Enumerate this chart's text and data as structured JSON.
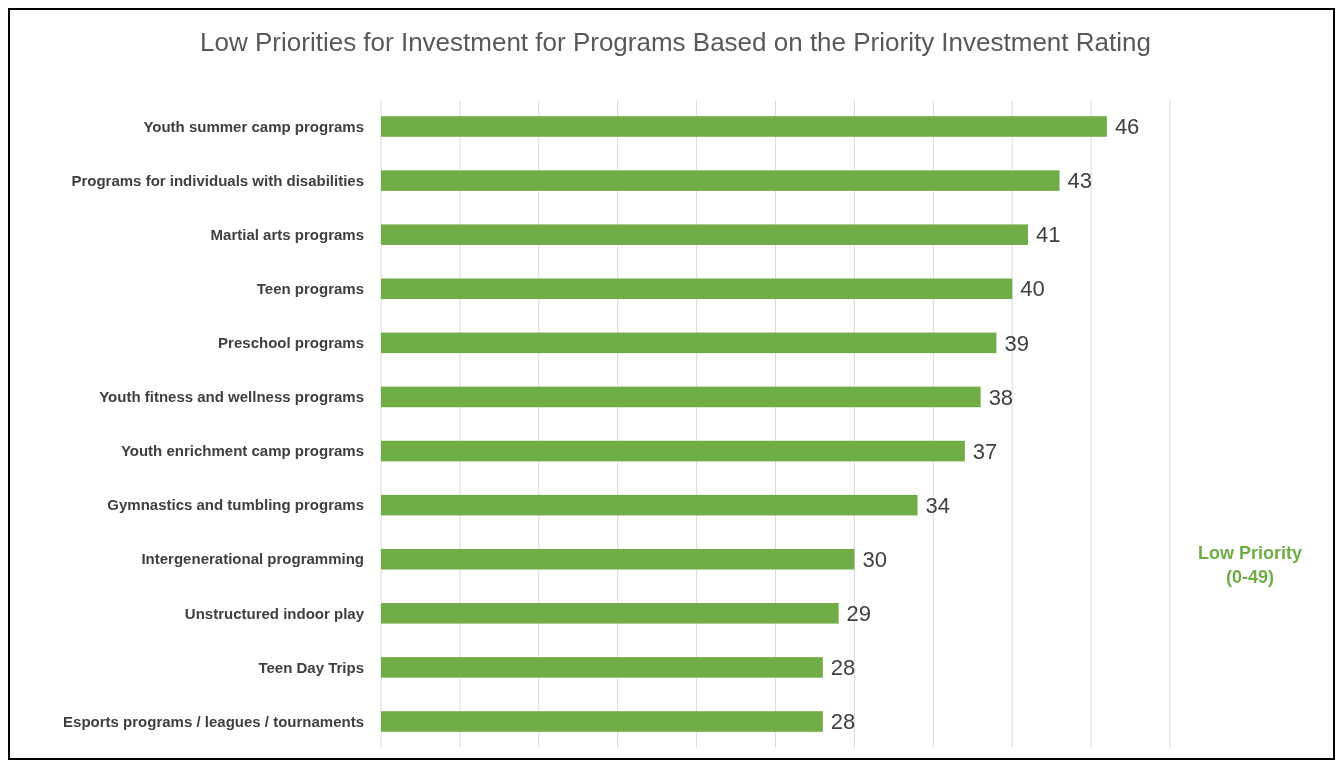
{
  "chart_data": {
    "type": "bar",
    "orientation": "horizontal",
    "title": "Low Priorities for Investment for Programs Based on the Priority Investment Rating",
    "categories": [
      "Youth summer camp programs",
      "Programs for individuals with disabilities",
      "Martial arts programs",
      "Teen programs",
      "Preschool programs",
      "Youth fitness and wellness programs",
      "Youth enrichment camp programs",
      "Gymnastics and tumbling programs",
      "Intergenerational programming",
      "Unstructured indoor play",
      "Teen Day Trips",
      "Esports programs / leagues / tournaments"
    ],
    "values": [
      46,
      43,
      41,
      40,
      39,
      38,
      37,
      34,
      30,
      29,
      28,
      28
    ],
    "color": "#70ad47",
    "data_labels": true,
    "grid": "x",
    "tick_labels": "y",
    "xlim": [
      0,
      50
    ],
    "xticks": [
      {
        "value": 0,
        "label": null
      },
      {
        "value": 5,
        "label": null
      },
      {
        "value": 10,
        "label": null
      },
      {
        "value": 15,
        "label": null
      },
      {
        "value": 20,
        "label": null
      },
      {
        "value": 25,
        "label": null
      },
      {
        "value": 30,
        "label": null
      },
      {
        "value": 35,
        "label": null
      },
      {
        "value": 40,
        "label": null
      },
      {
        "value": 45,
        "label": null
      },
      {
        "value": 50,
        "label": null
      }
    ],
    "annotations": [
      "Low Priority (0-49)"
    ]
  }
}
